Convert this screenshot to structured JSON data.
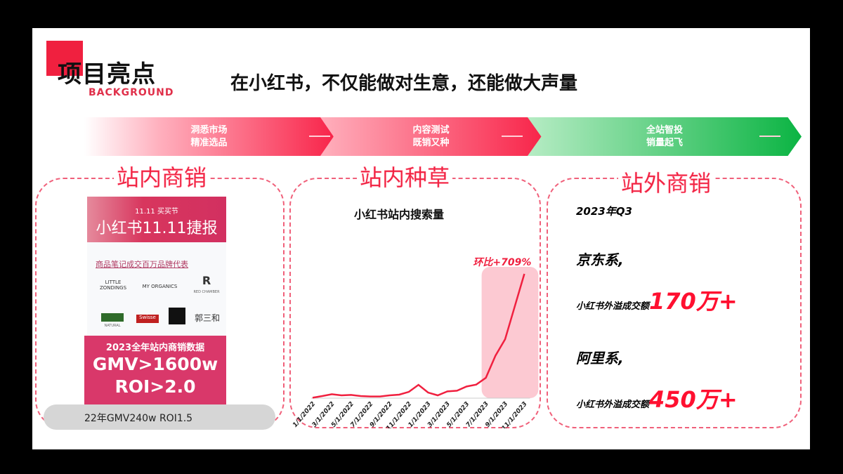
{
  "header": {
    "title": "项目亮点",
    "subtitle": "BACKGROUND",
    "headline": "在小红书，不仅能做对生意，还能做大声量"
  },
  "steps": [
    {
      "line1": "洞悉市场",
      "line2": "精准选品",
      "color": "#f8254a"
    },
    {
      "line1": "内容测试",
      "line2": "既销又种",
      "color": "#f8254a"
    },
    {
      "line1": "全站智投",
      "line2": "销量起飞",
      "color": "#0bb443"
    }
  ],
  "sections": {
    "left": {
      "heading": "站内商销",
      "poster": {
        "top_small": "11.11 买买节",
        "top_big": "小红书11.11捷报",
        "brand_title": "商品笔记成交百万品牌代表",
        "brands": [
          "LITTLE ZONDINGS",
          "MY ORGANICS",
          "RED CHAMBER",
          "NATURAL",
          "Swisse",
          "",
          "郭三和"
        ],
        "year_line": "2023全年站内商销数据",
        "gmv": "GMV>1600w",
        "roi": "ROI>2.0"
      },
      "footnote": "22年GMV240w  ROI1.5"
    },
    "middle": {
      "heading": "站内种草"
    },
    "right": {
      "heading": "站外商销",
      "period": "2023年Q3",
      "items": [
        {
          "label": "京东系,",
          "desc": "小红书外溢成交额",
          "value": "170万+"
        },
        {
          "label": "阿里系,",
          "desc": "小红书外溢成交额",
          "value": "450万+"
        }
      ]
    }
  },
  "chart_data": {
    "type": "line",
    "title": "小红书站内搜索量",
    "annotation": "环比+709%",
    "highlight_range": [
      "7/1/2023",
      "11/1/2023"
    ],
    "color": "#f0203f",
    "x": [
      "1/1/2022",
      "2/1/2022",
      "3/1/2022",
      "4/1/2022",
      "5/1/2022",
      "6/1/2022",
      "7/1/2022",
      "8/1/2022",
      "9/1/2022",
      "10/1/2022",
      "11/1/2022",
      "12/1/2022",
      "1/1/2023",
      "2/1/2023",
      "3/1/2023",
      "4/1/2023",
      "5/1/2023",
      "6/1/2023",
      "7/1/2023",
      "8/1/2023",
      "9/1/2023",
      "10/1/2023",
      "11/1/2023"
    ],
    "tick_labels": [
      "1/1/2022",
      "3/1/2022",
      "5/1/2022",
      "7/1/2022",
      "9/1/2022",
      "11/1/2022",
      "1/1/2023",
      "3/1/2023",
      "5/1/2023",
      "7/1/2023",
      "9/1/2023",
      "11/1/2023"
    ],
    "values": [
      2,
      9,
      17,
      12,
      14,
      9,
      7,
      7,
      12,
      15,
      27,
      57,
      24,
      12,
      29,
      32,
      50,
      58,
      87,
      182,
      252,
      392,
      532
    ]
  }
}
